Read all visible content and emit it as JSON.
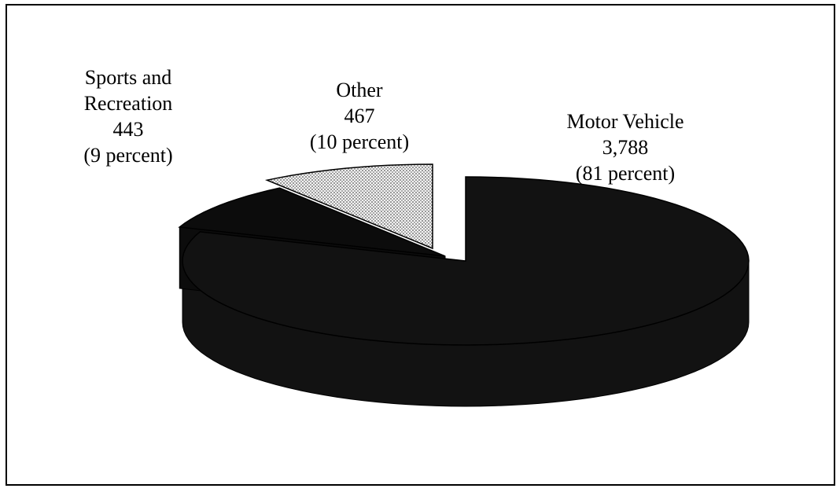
{
  "chart_data": {
    "type": "pie3d",
    "categories": [
      "Motor Vehicle",
      "Sports and Recreation",
      "Other"
    ],
    "values": [
      3788,
      443,
      467
    ],
    "value_labels": [
      "3,788",
      "443",
      "467"
    ],
    "percents": [
      81,
      9,
      10
    ],
    "percent_labels": [
      "(81 percent)",
      "(9 percent)",
      "(10 percent)"
    ],
    "colors": [
      "#121212",
      "#0c0c0c",
      "#cfcfcf"
    ]
  }
}
